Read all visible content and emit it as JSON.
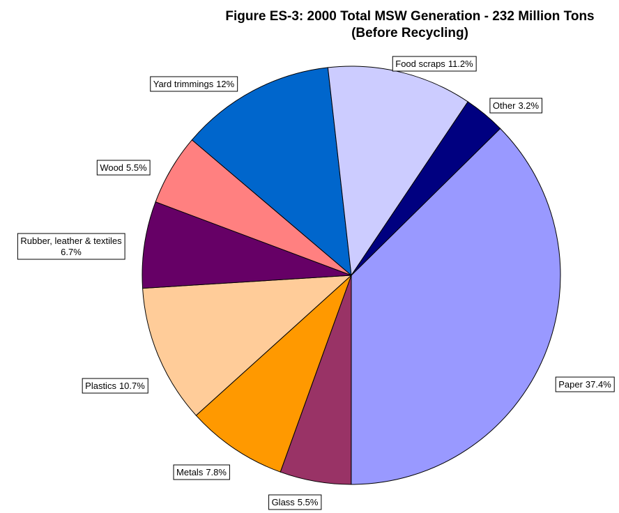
{
  "chart_data": {
    "type": "pie",
    "title": "Figure ES-3: 2000 Total MSW Generation - 232 Million Tons",
    "subtitle": "(Before Recycling)",
    "categories": [
      "Paper",
      "Glass",
      "Metals",
      "Plastics",
      "Rubber, leather & textiles",
      "Wood",
      "Yard trimmings",
      "Food scraps",
      "Other"
    ],
    "values": [
      37.4,
      5.5,
      7.8,
      10.7,
      6.7,
      5.5,
      12,
      11.2,
      3.2
    ],
    "value_labels": [
      "37.4%",
      "5.5%",
      "7.8%",
      "10.7%",
      "6.7%",
      "5.5%",
      "12%",
      "11.2%",
      "3.2%"
    ],
    "colors": [
      "#9999ff",
      "#993366",
      "#ff9900",
      "#ffcc99",
      "#660066",
      "#ff8080",
      "#0066cc",
      "#ccccff",
      "#000080"
    ]
  }
}
